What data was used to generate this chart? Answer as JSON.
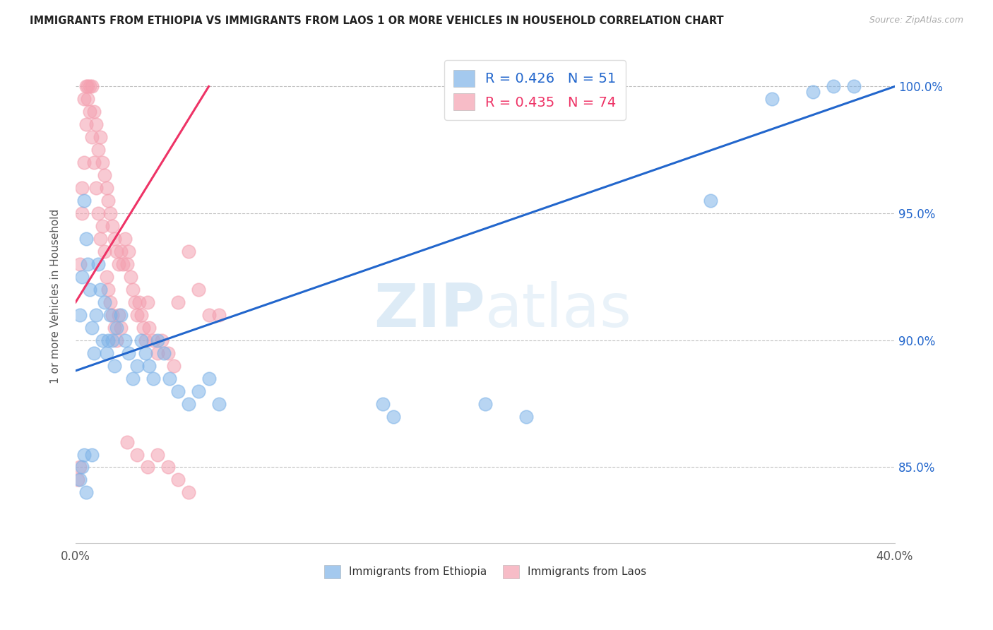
{
  "title": "IMMIGRANTS FROM ETHIOPIA VS IMMIGRANTS FROM LAOS 1 OR MORE VEHICLES IN HOUSEHOLD CORRELATION CHART",
  "source": "Source: ZipAtlas.com",
  "ylabel": "1 or more Vehicles in Household",
  "xlim": [
    0.0,
    0.4
  ],
  "ylim": [
    82.0,
    101.5
  ],
  "blue_color": "#7EB3E8",
  "pink_color": "#F4A0B0",
  "blue_line_color": "#2266CC",
  "pink_line_color": "#EE3366",
  "blue_scatter_alpha": 0.55,
  "pink_scatter_alpha": 0.55,
  "scatter_size": 180,
  "ethiopia_x": [
    0.002,
    0.003,
    0.004,
    0.005,
    0.006,
    0.007,
    0.008,
    0.009,
    0.01,
    0.011,
    0.012,
    0.013,
    0.014,
    0.015,
    0.016,
    0.017,
    0.018,
    0.019,
    0.02,
    0.022,
    0.024,
    0.026,
    0.028,
    0.03,
    0.032,
    0.034,
    0.036,
    0.038,
    0.04,
    0.043,
    0.046,
    0.05,
    0.055,
    0.06,
    0.065,
    0.07,
    0.15,
    0.155,
    0.2,
    0.22,
    0.31,
    0.34,
    0.36,
    0.37,
    0.38,
    0.002,
    0.003,
    0.004,
    0.005,
    0.008
  ],
  "ethiopia_y": [
    91.0,
    92.5,
    95.5,
    94.0,
    93.0,
    92.0,
    90.5,
    89.5,
    91.0,
    93.0,
    92.0,
    90.0,
    91.5,
    89.5,
    90.0,
    91.0,
    90.0,
    89.0,
    90.5,
    91.0,
    90.0,
    89.5,
    88.5,
    89.0,
    90.0,
    89.5,
    89.0,
    88.5,
    90.0,
    89.5,
    88.5,
    88.0,
    87.5,
    88.0,
    88.5,
    87.5,
    87.5,
    87.0,
    87.5,
    87.0,
    95.5,
    99.5,
    99.8,
    100.0,
    100.0,
    84.5,
    85.0,
    85.5,
    84.0,
    85.5
  ],
  "laos_x": [
    0.001,
    0.002,
    0.003,
    0.004,
    0.005,
    0.006,
    0.007,
    0.008,
    0.009,
    0.01,
    0.011,
    0.012,
    0.013,
    0.014,
    0.015,
    0.016,
    0.017,
    0.018,
    0.019,
    0.02,
    0.021,
    0.022,
    0.023,
    0.024,
    0.025,
    0.026,
    0.027,
    0.028,
    0.029,
    0.03,
    0.031,
    0.032,
    0.033,
    0.034,
    0.035,
    0.036,
    0.038,
    0.04,
    0.042,
    0.045,
    0.048,
    0.05,
    0.055,
    0.06,
    0.065,
    0.07,
    0.002,
    0.003,
    0.004,
    0.005,
    0.006,
    0.007,
    0.008,
    0.009,
    0.01,
    0.011,
    0.012,
    0.013,
    0.014,
    0.015,
    0.016,
    0.017,
    0.018,
    0.019,
    0.02,
    0.021,
    0.022,
    0.025,
    0.03,
    0.035,
    0.04,
    0.045,
    0.05,
    0.055
  ],
  "laos_y": [
    84.5,
    85.0,
    96.0,
    99.5,
    100.0,
    100.0,
    100.0,
    100.0,
    99.0,
    98.5,
    97.5,
    98.0,
    97.0,
    96.5,
    96.0,
    95.5,
    95.0,
    94.5,
    94.0,
    93.5,
    93.0,
    93.5,
    93.0,
    94.0,
    93.0,
    93.5,
    92.5,
    92.0,
    91.5,
    91.0,
    91.5,
    91.0,
    90.5,
    90.0,
    91.5,
    90.5,
    90.0,
    89.5,
    90.0,
    89.5,
    89.0,
    91.5,
    93.5,
    92.0,
    91.0,
    91.0,
    93.0,
    95.0,
    97.0,
    98.5,
    99.5,
    99.0,
    98.0,
    97.0,
    96.0,
    95.0,
    94.0,
    94.5,
    93.5,
    92.5,
    92.0,
    91.5,
    91.0,
    90.5,
    90.0,
    91.0,
    90.5,
    86.0,
    85.5,
    85.0,
    85.5,
    85.0,
    84.5,
    84.0
  ],
  "blue_line_x0": 0.0,
  "blue_line_x1": 0.4,
  "blue_line_y0": 88.8,
  "blue_line_y1": 100.0,
  "pink_line_x0": 0.0,
  "pink_line_x1": 0.065,
  "pink_line_y0": 91.5,
  "pink_line_y1": 100.0
}
